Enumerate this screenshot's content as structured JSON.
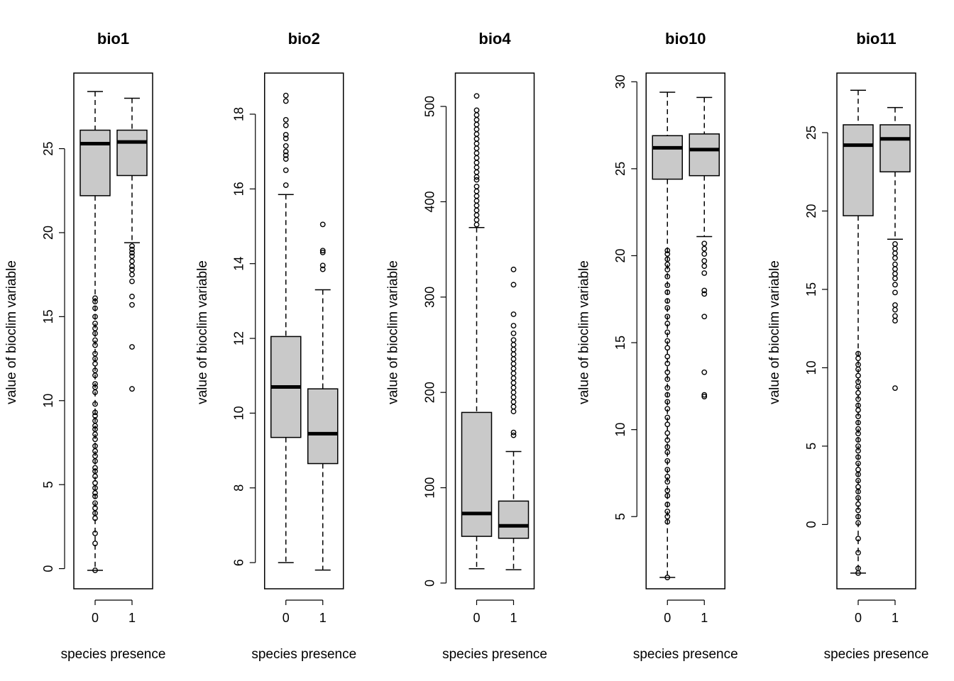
{
  "chart_data": [
    {
      "type": "box",
      "title": "bio1",
      "xlabel": "species presence",
      "ylabel": "value of bioclim variable",
      "categories": [
        "0",
        "1"
      ],
      "ylim": [
        -1.2,
        29.5
      ],
      "yticks": [
        0,
        5,
        10,
        15,
        20,
        25
      ],
      "boxes": [
        {
          "category": "0",
          "lower_whisker": -0.1,
          "q1": 22.2,
          "median": 25.3,
          "q3": 26.1,
          "upper_whisker": 28.4,
          "outliers": [
            -0.1,
            1.5,
            2.1,
            3.0,
            3.3,
            3.6,
            3.9,
            4.3,
            4.5,
            4.8,
            5.1,
            5.5,
            5.8,
            6.0,
            6.4,
            6.7,
            7.0,
            7.3,
            7.7,
            8.0,
            8.3,
            8.5,
            8.8,
            9.1,
            9.3,
            9.8,
            10.5,
            10.8,
            11.0,
            11.5,
            11.8,
            12.2,
            12.5,
            12.8,
            13.3,
            13.6,
            14.0,
            14.3,
            14.6,
            15.0,
            15.5,
            15.9,
            16.1
          ]
        },
        {
          "category": "1",
          "lower_whisker": 19.4,
          "q1": 23.4,
          "median": 25.4,
          "q3": 26.1,
          "upper_whisker": 28.0,
          "outliers": [
            10.7,
            13.2,
            15.7,
            16.2,
            17.1,
            17.5,
            17.8,
            18.0,
            18.3,
            18.6,
            18.8,
            19.0,
            19.2
          ]
        }
      ]
    },
    {
      "type": "box",
      "title": "bio2",
      "xlabel": "species presence",
      "ylabel": "value of bioclim variable",
      "categories": [
        "0",
        "1"
      ],
      "ylim": [
        5.3,
        19.1
      ],
      "yticks": [
        6,
        8,
        10,
        12,
        14,
        16,
        18
      ],
      "boxes": [
        {
          "category": "0",
          "lower_whisker": 6.0,
          "q1": 9.35,
          "median": 10.7,
          "q3": 12.05,
          "upper_whisker": 15.85,
          "outliers": [
            16.1,
            16.5,
            16.8,
            16.9,
            17.0,
            17.15,
            17.35,
            17.45,
            17.7,
            17.85,
            18.35,
            18.5
          ]
        },
        {
          "category": "1",
          "lower_whisker": 5.8,
          "q1": 8.65,
          "median": 9.45,
          "q3": 10.65,
          "upper_whisker": 13.3,
          "outliers": [
            13.85,
            13.95,
            14.3,
            14.35,
            15.05
          ]
        }
      ]
    },
    {
      "type": "box",
      "title": "bio4",
      "xlabel": "species presence",
      "ylabel": "value of bioclim variable",
      "categories": [
        "0",
        "1"
      ],
      "ylim": [
        -6,
        535
      ],
      "yticks": [
        0,
        100,
        200,
        300,
        400,
        500
      ],
      "boxes": [
        {
          "category": "0",
          "lower_whisker": 15,
          "q1": 49,
          "median": 73,
          "q3": 179,
          "upper_whisker": 373,
          "outliers": [
            376,
            381,
            386,
            391,
            396,
            401,
            406,
            411,
            416,
            423,
            426,
            431,
            436,
            441,
            446,
            451,
            456,
            461,
            466,
            471,
            476,
            481,
            486,
            491,
            496,
            511
          ]
        },
        {
          "category": "1",
          "lower_whisker": 14,
          "q1": 47,
          "median": 60,
          "q3": 86,
          "upper_whisker": 138,
          "outliers": [
            155,
            158,
            180,
            185,
            190,
            195,
            200,
            205,
            210,
            215,
            220,
            225,
            230,
            235,
            240,
            245,
            250,
            255,
            262,
            270,
            282,
            313,
            329
          ]
        }
      ]
    },
    {
      "type": "box",
      "title": "bio10",
      "xlabel": "species presence",
      "ylabel": "value of bioclim variable",
      "categories": [
        "0",
        "1"
      ],
      "ylim": [
        0.85,
        30.5
      ],
      "yticks": [
        5,
        10,
        15,
        20,
        25,
        30
      ],
      "boxes": [
        {
          "category": "0",
          "lower_whisker": 1.5,
          "q1": 24.4,
          "median": 26.2,
          "q3": 26.9,
          "upper_whisker": 29.4,
          "outliers": [
            1.5,
            4.7,
            5.0,
            5.3,
            5.7,
            6.2,
            6.5,
            7.0,
            7.3,
            7.7,
            8.2,
            8.7,
            9.0,
            9.4,
            9.8,
            10.3,
            10.7,
            11.2,
            11.6,
            12.0,
            12.4,
            12.9,
            13.3,
            13.8,
            14.2,
            14.7,
            15.1,
            15.6,
            16.1,
            16.5,
            17.0,
            17.4,
            17.9,
            18.3,
            18.8,
            19.2,
            19.5,
            19.8,
            20.1,
            20.3
          ]
        },
        {
          "category": "1",
          "lower_whisker": 21.1,
          "q1": 24.6,
          "median": 26.1,
          "q3": 27.0,
          "upper_whisker": 29.1,
          "outliers": [
            11.9,
            12.0,
            13.3,
            16.5,
            17.8,
            18.0,
            19.0,
            19.4,
            19.7,
            20.1,
            20.4,
            20.7
          ]
        }
      ]
    },
    {
      "type": "box",
      "title": "bio11",
      "xlabel": "species presence",
      "ylabel": "value of bioclim variable",
      "categories": [
        "0",
        "1"
      ],
      "ylim": [
        -4.1,
        28.8
      ],
      "yticks": [
        0,
        5,
        10,
        15,
        20,
        25
      ],
      "boxes": [
        {
          "category": "0",
          "lower_whisker": -3.1,
          "q1": 19.7,
          "median": 24.2,
          "q3": 25.5,
          "upper_whisker": 27.7,
          "outliers": [
            -3.1,
            -2.8,
            -1.8,
            -0.9,
            0.1,
            0.5,
            0.9,
            1.3,
            1.7,
            2.1,
            2.4,
            2.8,
            3.2,
            3.5,
            3.9,
            4.3,
            4.7,
            5.0,
            5.4,
            5.8,
            6.1,
            6.5,
            6.9,
            7.3,
            7.6,
            8.0,
            8.4,
            8.8,
            9.1,
            9.5,
            9.9,
            10.2,
            10.6,
            10.9
          ]
        },
        {
          "category": "1",
          "lower_whisker": 18.2,
          "q1": 22.5,
          "median": 24.6,
          "q3": 25.5,
          "upper_whisker": 26.6,
          "outliers": [
            8.7,
            13.0,
            13.3,
            13.7,
            14.0,
            14.8,
            15.3,
            15.7,
            16.0,
            16.3,
            16.6,
            17.0,
            17.3,
            17.6,
            17.9
          ]
        }
      ]
    }
  ]
}
